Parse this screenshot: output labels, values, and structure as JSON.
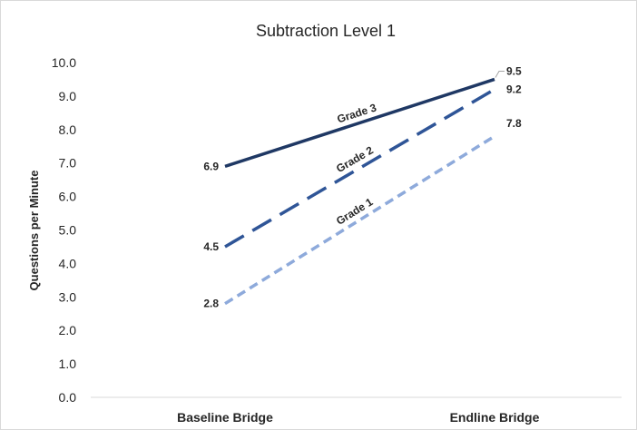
{
  "chart_data": {
    "type": "line",
    "title": "Subtraction Level 1",
    "xlabel": "",
    "ylabel": "Questions per Minute",
    "categories": [
      "Baseline Bridge",
      "Endline Bridge"
    ],
    "ylim": [
      0,
      10
    ],
    "yticks": [
      "0.0",
      "1.0",
      "2.0",
      "3.0",
      "4.0",
      "5.0",
      "6.0",
      "7.0",
      "8.0",
      "9.0",
      "10.0"
    ],
    "grid": false,
    "legend": "none",
    "series": [
      {
        "name": "Grade 3",
        "values": [
          6.9,
          9.5
        ],
        "labels": [
          "6.9",
          "9.5"
        ],
        "color": "#1f3864",
        "dash": "solid"
      },
      {
        "name": "Grade 2",
        "values": [
          4.5,
          9.2
        ],
        "labels": [
          "4.5",
          "9.2"
        ],
        "color": "#2f5597",
        "dash": "long-dash"
      },
      {
        "name": "Grade 1",
        "values": [
          2.8,
          7.8
        ],
        "labels": [
          "2.8",
          "7.8"
        ],
        "color": "#8eaadb",
        "dash": "dash"
      }
    ]
  }
}
